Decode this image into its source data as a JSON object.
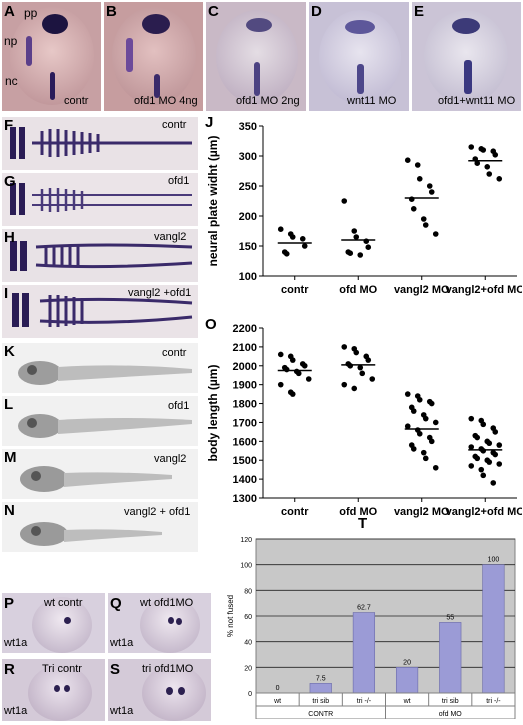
{
  "figure": {
    "top_row": [
      {
        "letter": "A",
        "caption": "contr",
        "annotations": [
          "pp",
          "np",
          "nc"
        ]
      },
      {
        "letter": "B",
        "caption": "ofd1 MO 4ng"
      },
      {
        "letter": "C",
        "caption": "ofd1 MO 2ng"
      },
      {
        "letter": "D",
        "caption": "wnt11 MO"
      },
      {
        "letter": "E",
        "caption": "ofd1+wnt11 MO"
      }
    ],
    "flat_mounts": [
      {
        "letter": "F",
        "caption": "contr"
      },
      {
        "letter": "G",
        "caption": "ofd1"
      },
      {
        "letter": "H",
        "caption": "vangl2"
      },
      {
        "letter": "I",
        "caption": "vangl2 +ofd1"
      }
    ],
    "larvae": [
      {
        "letter": "K",
        "caption": "contr"
      },
      {
        "letter": "L",
        "caption": "ofd1"
      },
      {
        "letter": "M",
        "caption": "vangl2"
      },
      {
        "letter": "N",
        "caption": "vangl2 + ofd1"
      }
    ],
    "heads": [
      {
        "letter": "P",
        "caption": "wt contr",
        "marker": "wt1a"
      },
      {
        "letter": "Q",
        "caption": "wt ofd1MO",
        "marker": "wt1a"
      },
      {
        "letter": "R",
        "caption": "Tri contr",
        "marker": "wt1a"
      },
      {
        "letter": "S",
        "caption": "tri ofd1MO",
        "marker": "wt1a"
      }
    ],
    "chart_letters": {
      "J": "J",
      "O": "O",
      "T": "T"
    }
  },
  "chart_data": [
    {
      "type": "scatter",
      "panel": "J",
      "ylabel": "neural plate widht (µm)",
      "ylim": [
        100,
        350
      ],
      "yticks": [
        100,
        150,
        200,
        250,
        300,
        350
      ],
      "categories": [
        "contr",
        "ofd MO",
        "vangl2 MO",
        "vangl2+ofd MO"
      ],
      "points": [
        [
          178,
          170,
          165,
          162,
          150,
          140,
          137
        ],
        [
          225,
          175,
          165,
          158,
          148,
          140,
          138,
          135
        ],
        [
          293,
          285,
          262,
          250,
          240,
          228,
          212,
          195,
          185,
          170
        ],
        [
          315,
          312,
          310,
          308,
          302,
          295,
          288,
          282,
          270,
          262
        ]
      ],
      "means": [
        155,
        160,
        230,
        292
      ]
    },
    {
      "type": "scatter",
      "panel": "O",
      "ylabel": "body length (µm)",
      "ylim": [
        1300,
        2200
      ],
      "yticks": [
        1300,
        1400,
        1500,
        1600,
        1700,
        1800,
        1900,
        2000,
        2100,
        2200
      ],
      "categories": [
        "contr",
        "ofd MO",
        "vangl2 MO",
        "vangl2+ofd MO"
      ],
      "points": [
        [
          2060,
          2050,
          2030,
          2010,
          2000,
          1990,
          1980,
          1970,
          1960,
          1930,
          1900,
          1860,
          1850
        ],
        [
          2100,
          2090,
          2070,
          2050,
          2030,
          2010,
          2000,
          1990,
          1960,
          1930,
          1900,
          1880
        ],
        [
          1850,
          1840,
          1820,
          1810,
          1800,
          1780,
          1760,
          1740,
          1720,
          1700,
          1680,
          1660,
          1640,
          1620,
          1600,
          1580,
          1560,
          1540,
          1510,
          1460
        ],
        [
          1720,
          1710,
          1690,
          1670,
          1650,
          1630,
          1620,
          1600,
          1590,
          1580,
          1570,
          1560,
          1550,
          1540,
          1530,
          1520,
          1510,
          1500,
          1490,
          1480,
          1470,
          1450,
          1420,
          1380
        ]
      ],
      "means": [
        1975,
        2005,
        1665,
        1555
      ]
    },
    {
      "type": "bar",
      "panel": "T",
      "ylabel": "% not fused",
      "ylim": [
        0,
        120
      ],
      "yticks": [
        0,
        20,
        40,
        60,
        80,
        100,
        120
      ],
      "categories": [
        "wt",
        "tri sib",
        "tri -/-",
        "wt",
        "tri sib",
        "tri -/-"
      ],
      "groups": [
        "CONTR",
        "ofd MO"
      ],
      "values": [
        0,
        7.5,
        62.7,
        20,
        55,
        100
      ],
      "labels": [
        "0",
        "7.5",
        "62.7",
        "20",
        "55",
        "100"
      ],
      "color": "#9b9bd6"
    }
  ]
}
